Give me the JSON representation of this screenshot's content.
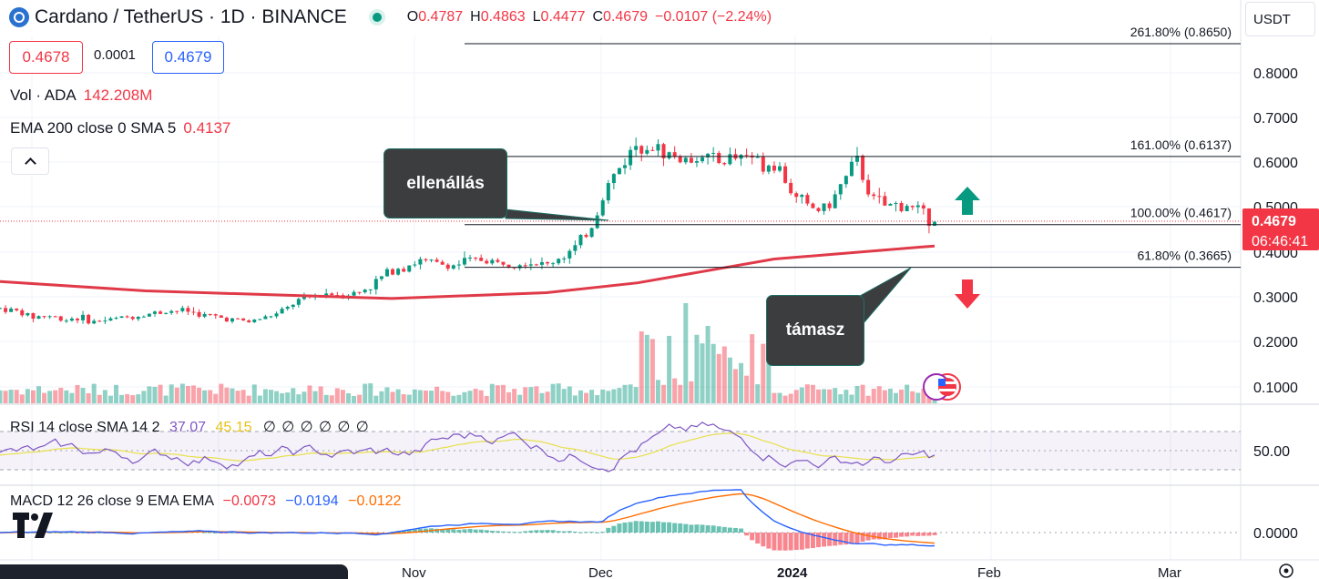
{
  "header": {
    "symbol_title": "Cardano / TetherUS · 1D · BINANCE",
    "ohlc": [
      {
        "key": "O",
        "value": "0.4787"
      },
      {
        "key": "H",
        "value": "0.4863"
      },
      {
        "key": "L",
        "value": "0.4477"
      },
      {
        "key": "C",
        "value": "0.4679"
      }
    ],
    "change": "−0.0107 (−2.24%)",
    "market_status_color": "#089981"
  },
  "order": {
    "sell_price": "0.4678",
    "spread": "0.0001",
    "buy_price": "0.4679",
    "sell_color": "#f23645",
    "buy_color": "#2962ff"
  },
  "indicators": {
    "volume": {
      "label": "Vol · ADA",
      "value": "142.208M"
    },
    "ema": {
      "label": "EMA 200 close 0 SMA 5",
      "value": "0.4137"
    },
    "rsi": {
      "label": "RSI 14 close SMA 14 2",
      "v1": "37.07",
      "v2": "45.15",
      "extra": "∅ ∅ ∅ ∅ ∅ ∅"
    },
    "macd": {
      "label": "MACD 12 26 close 9 EMA EMA",
      "v1": "−0.0073",
      "v2": "−0.0194",
      "v3": "−0.0122"
    }
  },
  "currency_button": "USDT",
  "price_axis": {
    "ticks": [
      "0.8000",
      "0.7000",
      "0.6000",
      "0.5000",
      "0.4000",
      "0.3000",
      "0.2000",
      "0.1000"
    ],
    "current_price": "0.4679",
    "countdown": "06:46:41"
  },
  "rsi_axis": {
    "tick": "50.00"
  },
  "macd_axis": {
    "tick": "0.0000"
  },
  "time_axis": {
    "ticks": [
      "Nov",
      "Dec",
      "2024",
      "Feb",
      "Mar"
    ]
  },
  "fibonacci": [
    {
      "label": "261.80% (0.8650)",
      "price": 0.865
    },
    {
      "label": "161.00% (0.6137)",
      "price": 0.6137
    },
    {
      "label": "100.00% (0.4617)",
      "price": 0.4617
    },
    {
      "label": "61.80% (0.3665)",
      "price": 0.3665
    }
  ],
  "annotations": {
    "resistance": "ellenállás",
    "support": "támasz"
  },
  "colors": {
    "up": "#089981",
    "down": "#f23645",
    "ema": "#e03a49",
    "rsi_line": "#7e57c2",
    "rsi_sma": "#e8e04a",
    "macd_line": "#2962ff",
    "signal_line": "#ff6d00"
  },
  "chart_data": {
    "type": "candlestick",
    "symbol": "ADA/USDT",
    "interval": "1D",
    "price_ylim": [
      0.05,
      0.9
    ],
    "ema200": [
      [
        0,
        0.335
      ],
      [
        160,
        0.314
      ],
      [
        430,
        0.297
      ],
      [
        600,
        0.31
      ],
      [
        700,
        0.332
      ],
      [
        850,
        0.385
      ],
      [
        1026,
        0.414
      ]
    ],
    "closes": [
      0.275,
      0.27,
      0.255,
      0.26,
      0.25,
      0.255,
      0.245,
      0.25,
      0.255,
      0.26,
      0.265,
      0.27,
      0.27,
      0.26,
      0.255,
      0.25,
      0.245,
      0.255,
      0.265,
      0.29,
      0.3,
      0.31,
      0.305,
      0.31,
      0.33,
      0.36,
      0.37,
      0.38,
      0.375,
      0.37,
      0.38,
      0.385,
      0.375,
      0.38,
      0.38,
      0.37,
      0.39,
      0.41,
      0.46,
      0.55,
      0.6,
      0.65,
      0.63,
      0.62,
      0.6,
      0.62,
      0.6,
      0.61,
      0.62,
      0.6,
      0.59,
      0.52,
      0.5,
      0.49,
      0.55,
      0.6,
      0.52,
      0.5,
      0.51,
      0.49,
      0.4679
    ]
  }
}
